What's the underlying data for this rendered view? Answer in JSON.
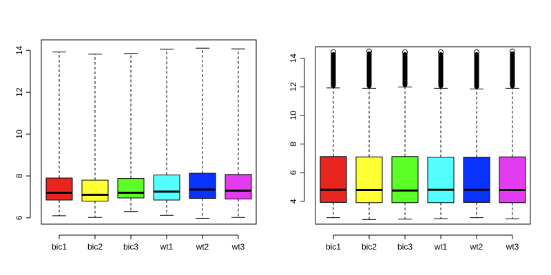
{
  "chart_data": [
    {
      "type": "boxplot",
      "title": "",
      "xlabel": "",
      "ylabel": "",
      "ylim": [
        5.7,
        14.5
      ],
      "yticks": [
        6,
        8,
        10,
        12,
        14
      ],
      "grid": false,
      "legend": "none",
      "categories": [
        "bic1",
        "bic2",
        "bic3",
        "wt1",
        "wt2",
        "wt3"
      ],
      "colors": [
        "#e8261f",
        "#ffff33",
        "#5cff26",
        "#55ffff",
        "#0a32ff",
        "#e23cf0"
      ],
      "boxes": [
        {
          "min": 6.1,
          "q1": 6.85,
          "median": 7.2,
          "q3": 7.9,
          "max": 13.92
        },
        {
          "min": 6.02,
          "q1": 6.8,
          "median": 7.1,
          "q3": 7.8,
          "max": 13.82
        },
        {
          "min": 6.3,
          "q1": 6.95,
          "median": 7.2,
          "q3": 7.88,
          "max": 13.85
        },
        {
          "min": 6.12,
          "q1": 6.85,
          "median": 7.25,
          "q3": 8.05,
          "max": 14.06
        },
        {
          "min": 5.98,
          "q1": 6.93,
          "median": 7.35,
          "q3": 8.13,
          "max": 14.1
        },
        {
          "min": 6.02,
          "q1": 6.9,
          "median": 7.3,
          "q3": 8.07,
          "max": 14.07
        }
      ]
    },
    {
      "type": "boxplot",
      "title": "",
      "xlabel": "",
      "ylabel": "",
      "ylim": [
        2.4,
        14.8
      ],
      "yticks": [
        4,
        6,
        8,
        10,
        12,
        14
      ],
      "grid": false,
      "legend": "none",
      "categories": [
        "bic1",
        "bic2",
        "bic3",
        "wt1",
        "wt2",
        "wt3"
      ],
      "colors": [
        "#e8261f",
        "#ffff33",
        "#5cff26",
        "#55ffff",
        "#0a32ff",
        "#e23cf0"
      ],
      "boxes": [
        {
          "min": 2.85,
          "q1": 3.92,
          "median": 4.8,
          "q3": 7.12,
          "max": 11.92,
          "outliers_from": 11.92,
          "outliers_to": 14.42
        },
        {
          "min": 2.72,
          "q1": 3.9,
          "median": 4.78,
          "q3": 7.1,
          "max": 11.9,
          "outliers_from": 11.9,
          "outliers_to": 14.48
        },
        {
          "min": 2.75,
          "q1": 3.9,
          "median": 4.75,
          "q3": 7.12,
          "max": 11.98,
          "outliers_from": 11.98,
          "outliers_to": 14.42
        },
        {
          "min": 2.78,
          "q1": 3.9,
          "median": 4.8,
          "q3": 7.08,
          "max": 11.9,
          "outliers_from": 11.9,
          "outliers_to": 14.42
        },
        {
          "min": 2.85,
          "q1": 3.92,
          "median": 4.8,
          "q3": 7.08,
          "max": 11.85,
          "outliers_from": 11.85,
          "outliers_to": 14.42
        },
        {
          "min": 2.78,
          "q1": 3.9,
          "median": 4.78,
          "q3": 7.1,
          "max": 11.9,
          "outliers_from": 11.9,
          "outliers_to": 14.48
        }
      ]
    }
  ]
}
